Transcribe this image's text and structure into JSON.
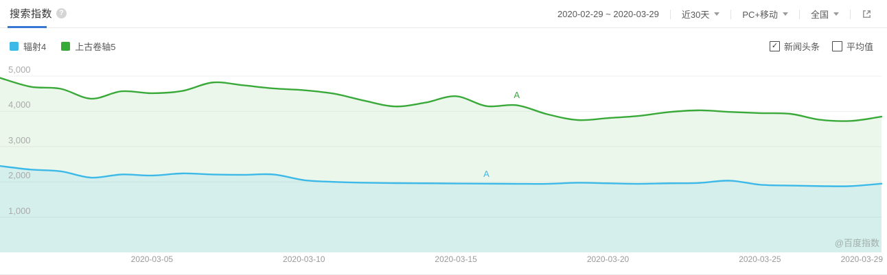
{
  "header": {
    "title": "搜索指数",
    "help": "?"
  },
  "toolbar": {
    "date_range": "2020-02-29 ~ 2020-03-29",
    "duration": "近30天",
    "platform": "PC+移动",
    "region": "全国"
  },
  "legend": [
    {
      "label": "辐射4",
      "color": "#3db9e8"
    },
    {
      "label": "上古卷轴5",
      "color": "#39a939"
    }
  ],
  "options": [
    {
      "label": "新闻头条",
      "checked": true
    },
    {
      "label": "平均值",
      "checked": false
    }
  ],
  "watermark": "@百度指数",
  "chart_data": {
    "type": "line",
    "title": "搜索指数",
    "x": [
      "2020-02-29",
      "2020-03-01",
      "2020-03-02",
      "2020-03-03",
      "2020-03-04",
      "2020-03-05",
      "2020-03-06",
      "2020-03-07",
      "2020-03-08",
      "2020-03-09",
      "2020-03-10",
      "2020-03-11",
      "2020-03-12",
      "2020-03-13",
      "2020-03-14",
      "2020-03-15",
      "2020-03-16",
      "2020-03-17",
      "2020-03-18",
      "2020-03-19",
      "2020-03-20",
      "2020-03-21",
      "2020-03-22",
      "2020-03-23",
      "2020-03-24",
      "2020-03-25",
      "2020-03-26",
      "2020-03-27",
      "2020-03-28",
      "2020-03-29"
    ],
    "series": [
      {
        "name": "上古卷轴5",
        "color": "#39a939",
        "fill": "rgba(105,190,105,0.13)",
        "values": [
          4950,
          4700,
          4640,
          4360,
          4570,
          4515,
          4580,
          4820,
          4740,
          4650,
          4600,
          4500,
          4300,
          4140,
          4250,
          4430,
          4150,
          4175,
          3920,
          3755,
          3810,
          3870,
          3980,
          4030,
          3985,
          3950,
          3930,
          3760,
          3730,
          3850
        ]
      },
      {
        "name": "辐射4",
        "color": "#3db9e8",
        "fill": "rgba(93,196,236,0.16)",
        "values": [
          2450,
          2350,
          2300,
          2120,
          2210,
          2180,
          2240,
          2210,
          2200,
          2210,
          2050,
          2000,
          1975,
          1965,
          1960,
          1955,
          1950,
          1945,
          1945,
          1975,
          1960,
          1945,
          1960,
          1970,
          2035,
          1920,
          1895,
          1880,
          1880,
          1950
        ]
      }
    ],
    "ylim": [
      0,
      5000
    ],
    "yticks": [
      {
        "value": 1000,
        "label": "1,000"
      },
      {
        "value": 2000,
        "label": "2,000"
      },
      {
        "value": 3000,
        "label": "3,000"
      },
      {
        "value": 4000,
        "label": "4,000"
      },
      {
        "value": 5000,
        "label": "5,000"
      }
    ],
    "xticks": [
      "2020-03-05",
      "2020-03-10",
      "2020-03-15",
      "2020-03-20",
      "2020-03-25",
      "2020-03-29"
    ],
    "annotations": [
      {
        "series": "上古卷轴5",
        "date": "2020-03-17",
        "label": "A"
      },
      {
        "series": "辐射4",
        "date": "2020-03-16",
        "label": "A"
      }
    ],
    "grid": true,
    "legend_position": "top-left"
  }
}
